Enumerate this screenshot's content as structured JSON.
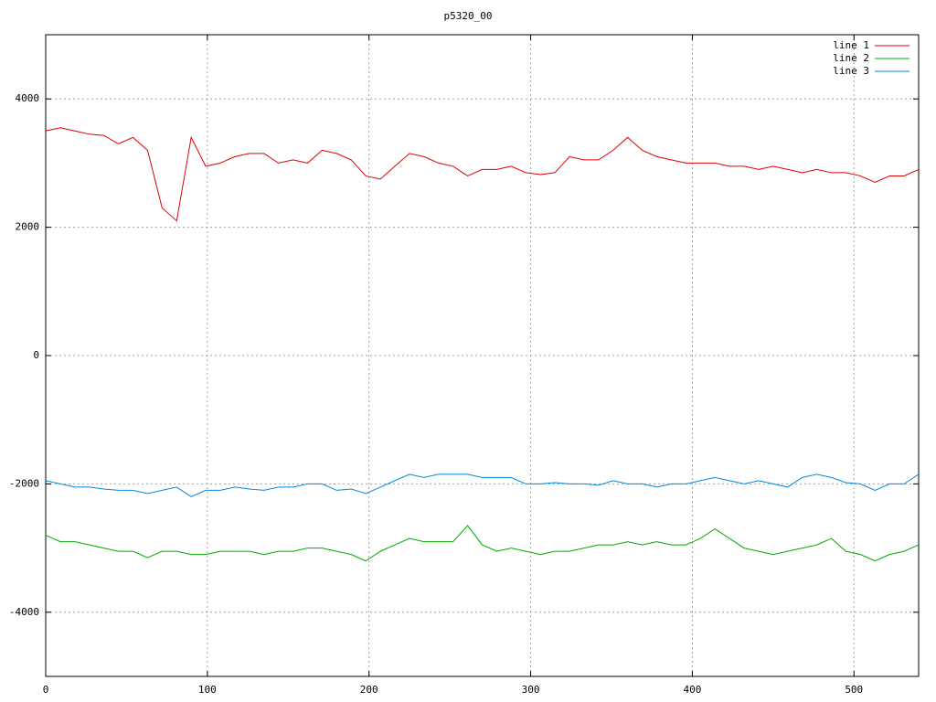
{
  "chart_data": {
    "type": "line",
    "title": "p5320_00",
    "x": [
      0,
      9,
      18,
      27,
      36,
      45,
      54,
      63,
      72,
      81,
      90,
      99,
      108,
      117,
      126,
      135,
      144,
      153,
      162,
      171,
      180,
      189,
      198,
      207,
      216,
      225,
      234,
      243,
      252,
      261,
      270,
      279,
      288,
      297,
      306,
      315,
      324,
      333,
      342,
      351,
      360,
      369,
      378,
      387,
      396,
      405,
      414,
      423,
      432,
      441,
      450,
      459,
      468,
      477,
      486,
      495,
      504,
      513,
      522,
      531,
      540
    ],
    "series": [
      {
        "name": "line 1",
        "color": "#dd0000",
        "values": [
          3500,
          3550,
          3500,
          3450,
          3430,
          3300,
          3400,
          3200,
          2300,
          2100,
          3400,
          2950,
          3000,
          3100,
          3150,
          3150,
          3000,
          3050,
          3000,
          3200,
          3150,
          3050,
          2800,
          2750,
          2950,
          3150,
          3100,
          3000,
          2950,
          2800,
          2900,
          2900,
          2950,
          2850,
          2820,
          2850,
          3100,
          3050,
          3050,
          3200,
          3400,
          3200,
          3100,
          3050,
          3000,
          3000,
          3000,
          2950,
          2950,
          2900,
          2950,
          2900,
          2850,
          2900,
          2850,
          2850,
          2800,
          2700,
          2800,
          2800,
          2900
        ]
      },
      {
        "name": "line 2",
        "color": "#00aa00",
        "values": [
          -2800,
          -2900,
          -2900,
          -2950,
          -3000,
          -3050,
          -3050,
          -3150,
          -3050,
          -3050,
          -3100,
          -3100,
          -3050,
          -3050,
          -3050,
          -3100,
          -3050,
          -3050,
          -3000,
          -3000,
          -3050,
          -3100,
          -3200,
          -3050,
          -2950,
          -2850,
          -2900,
          -2900,
          -2900,
          -2650,
          -2950,
          -3050,
          -3000,
          -3050,
          -3100,
          -3050,
          -3050,
          -3000,
          -2950,
          -2950,
          -2900,
          -2950,
          -2900,
          -2950,
          -2950,
          -2850,
          -2700,
          -2850,
          -3000,
          -3050,
          -3100,
          -3050,
          -3000,
          -2950,
          -2850,
          -3050,
          -3100,
          -3200,
          -3100,
          -3050,
          -2950
        ]
      },
      {
        "name": "line 3",
        "color": "#0088dd",
        "values": [
          -1950,
          -2000,
          -2050,
          -2050,
          -2080,
          -2100,
          -2100,
          -2150,
          -2100,
          -2050,
          -2200,
          -2100,
          -2100,
          -2050,
          -2080,
          -2100,
          -2050,
          -2050,
          -2000,
          -2000,
          -2100,
          -2080,
          -2150,
          -2050,
          -1950,
          -1850,
          -1900,
          -1850,
          -1850,
          -1850,
          -1900,
          -1900,
          -1900,
          -2000,
          -2000,
          -1980,
          -2000,
          -2000,
          -2020,
          -1950,
          -2000,
          -2000,
          -2050,
          -2000,
          -2000,
          -1950,
          -1900,
          -1950,
          -2000,
          -1950,
          -2000,
          -2050,
          -1900,
          -1850,
          -1900,
          -1980,
          -2000,
          -2100,
          -2000,
          -2000,
          -1850
        ]
      }
    ],
    "xlim": [
      0,
      540
    ],
    "xticks": [
      0,
      100,
      200,
      300,
      400,
      500
    ],
    "ylim": [
      -5000,
      5000
    ],
    "yticks": [
      -4000,
      -2000,
      0,
      2000,
      4000
    ],
    "grid": true,
    "legend": "top-right"
  }
}
